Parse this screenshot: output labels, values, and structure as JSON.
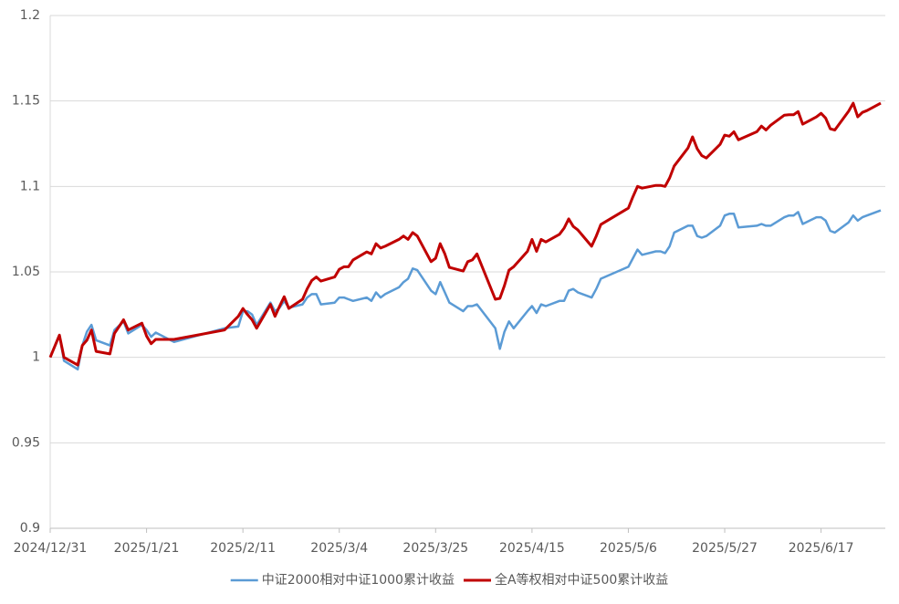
{
  "chart_data": {
    "type": "line",
    "x": [
      "2024/12/31",
      "2025/1/2",
      "2025/1/3",
      "2025/1/6",
      "2025/1/7",
      "2025/1/8",
      "2025/1/9",
      "2025/1/10",
      "2025/1/13",
      "2025/1/14",
      "2025/1/16",
      "2025/1/17",
      "2025/1/20",
      "2025/1/21",
      "2025/1/22",
      "2025/1/23",
      "2025/1/27",
      "2025/2/7",
      "2025/2/10",
      "2025/2/11",
      "2025/2/12",
      "2025/2/13",
      "2025/2/14",
      "2025/2/17",
      "2025/2/18",
      "2025/2/19",
      "2025/2/20",
      "2025/2/21",
      "2025/2/24",
      "2025/2/25",
      "2025/2/26",
      "2025/2/27",
      "2025/2/28",
      "2025/3/3",
      "2025/3/4",
      "2025/3/5",
      "2025/3/6",
      "2025/3/7",
      "2025/3/10",
      "2025/3/11",
      "2025/3/12",
      "2025/3/13",
      "2025/3/14",
      "2025/3/17",
      "2025/3/18",
      "2025/3/19",
      "2025/3/20",
      "2025/3/21",
      "2025/3/24",
      "2025/3/25",
      "2025/3/26",
      "2025/3/27",
      "2025/3/28",
      "2025/3/31",
      "2025/4/1",
      "2025/4/2",
      "2025/4/3",
      "2025/4/7",
      "2025/4/8",
      "2025/4/9",
      "2025/4/10",
      "2025/4/11",
      "2025/4/14",
      "2025/4/15",
      "2025/4/16",
      "2025/4/17",
      "2025/4/18",
      "2025/4/21",
      "2025/4/22",
      "2025/4/23",
      "2025/4/24",
      "2025/4/25",
      "2025/4/28",
      "2025/4/29",
      "2025/4/30",
      "2025/5/6",
      "2025/5/7",
      "2025/5/8",
      "2025/5/9",
      "2025/5/12",
      "2025/5/13",
      "2025/5/14",
      "2025/5/15",
      "2025/5/16",
      "2025/5/19",
      "2025/5/20",
      "2025/5/21",
      "2025/5/22",
      "2025/5/23",
      "2025/5/26",
      "2025/5/27",
      "2025/5/28",
      "2025/5/29",
      "2025/5/30",
      "2025/6/3",
      "2025/6/4",
      "2025/6/5",
      "2025/6/6",
      "2025/6/9",
      "2025/6/10",
      "2025/6/11",
      "2025/6/12",
      "2025/6/13",
      "2025/6/16",
      "2025/6/17",
      "2025/6/18",
      "2025/6/19",
      "2025/6/20",
      "2025/6/23",
      "2025/6/24",
      "2025/6/25",
      "2025/6/26",
      "2025/6/27",
      "2025/6/30"
    ],
    "series": [
      {
        "name": "中证2000相对中证1000累计收益",
        "color": "#5b9bd5",
        "values": [
          1.0,
          1.013,
          0.998,
          0.993,
          1.007,
          1.015,
          1.019,
          1.01,
          1.007,
          1.016,
          1.021,
          1.014,
          1.019,
          1.016,
          1.012,
          1.0145,
          1.009,
          1.017,
          1.018,
          1.027,
          1.027,
          1.025,
          1.019,
          1.032,
          1.027,
          1.029,
          1.033,
          1.029,
          1.031,
          1.035,
          1.037,
          1.037,
          1.031,
          1.032,
          1.035,
          1.035,
          1.034,
          1.033,
          1.035,
          1.033,
          1.038,
          1.035,
          1.037,
          1.041,
          1.044,
          1.046,
          1.052,
          1.051,
          1.039,
          1.037,
          1.044,
          1.038,
          1.032,
          1.027,
          1.03,
          1.03,
          1.031,
          1.017,
          1.005,
          1.015,
          1.021,
          1.017,
          1.027,
          1.03,
          1.026,
          1.031,
          1.03,
          1.033,
          1.033,
          1.039,
          1.04,
          1.038,
          1.035,
          1.04,
          1.046,
          1.053,
          1.058,
          1.063,
          1.06,
          1.062,
          1.062,
          1.061,
          1.065,
          1.073,
          1.077,
          1.077,
          1.071,
          1.07,
          1.071,
          1.077,
          1.083,
          1.084,
          1.084,
          1.076,
          1.077,
          1.078,
          1.077,
          1.077,
          1.082,
          1.083,
          1.083,
          1.085,
          1.078,
          1.082,
          1.082,
          1.08,
          1.074,
          1.073,
          1.079,
          1.083,
          1.08,
          1.082,
          1.083,
          1.086
        ]
      },
      {
        "name": "全A等权相对中证500累计收益",
        "color": "#c00000",
        "values": [
          1.0,
          1.013,
          1.0,
          0.9955,
          1.007,
          1.01,
          1.016,
          1.0035,
          1.002,
          1.014,
          1.022,
          1.016,
          1.02,
          1.0125,
          1.008,
          1.0105,
          1.0105,
          1.016,
          1.024,
          1.0286,
          1.025,
          1.022,
          1.017,
          1.031,
          1.024,
          1.03,
          1.0355,
          1.0286,
          1.034,
          1.04,
          1.045,
          1.047,
          1.0446,
          1.047,
          1.0515,
          1.053,
          1.053,
          1.057,
          1.0617,
          1.0605,
          1.0665,
          1.064,
          1.065,
          1.069,
          1.071,
          1.069,
          1.073,
          1.071,
          1.056,
          1.058,
          1.0665,
          1.0605,
          1.0526,
          1.0505,
          1.056,
          1.057,
          1.0605,
          1.034,
          1.0345,
          1.042,
          1.051,
          1.053,
          1.062,
          1.069,
          1.062,
          1.069,
          1.0675,
          1.072,
          1.0756,
          1.081,
          1.0766,
          1.0745,
          1.065,
          1.071,
          1.0777,
          1.0873,
          1.094,
          1.1,
          1.099,
          1.1006,
          1.1006,
          1.1,
          1.105,
          1.112,
          1.1225,
          1.129,
          1.122,
          1.118,
          1.1166,
          1.1246,
          1.13,
          1.1294,
          1.132,
          1.1273,
          1.132,
          1.1353,
          1.133,
          1.1358,
          1.1417,
          1.142,
          1.142,
          1.1438,
          1.1364,
          1.1407,
          1.1428,
          1.14,
          1.1337,
          1.133,
          1.144,
          1.1487,
          1.1407,
          1.1433,
          1.1444,
          1.1487
        ]
      }
    ],
    "xlim": [
      "2024/12/31",
      "2025/7/1"
    ],
    "xticks": [
      "2024/12/31",
      "2025/1/21",
      "2025/2/11",
      "2025/3/4",
      "2025/3/25",
      "2025/4/15",
      "2025/5/6",
      "2025/5/27",
      "2025/6/17"
    ],
    "ylim": [
      0.9,
      1.2
    ],
    "yticks": [
      0.9,
      0.95,
      1,
      1.05,
      1.1,
      1.15,
      1.2
    ],
    "grid": true,
    "legend": "bottom"
  }
}
